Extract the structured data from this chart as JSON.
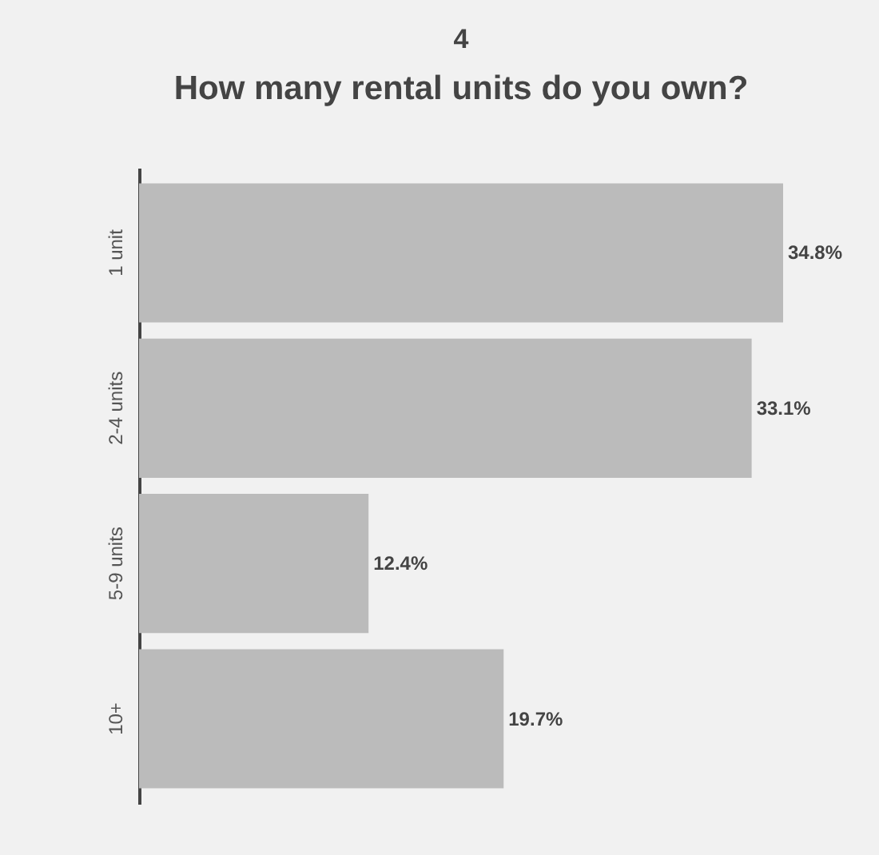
{
  "chart_data": {
    "type": "bar",
    "title": "4",
    "subtitle": "How many rental units do you own?",
    "orientation": "horizontal",
    "categories": [
      "1 unit",
      "2-4 units",
      "5-9 units",
      "10+"
    ],
    "values": [
      34.8,
      33.1,
      12.4,
      19.7
    ],
    "value_labels": [
      "34.8%",
      "33.1%",
      "12.4%",
      "19.7%"
    ],
    "color": "#bbbbbb"
  }
}
